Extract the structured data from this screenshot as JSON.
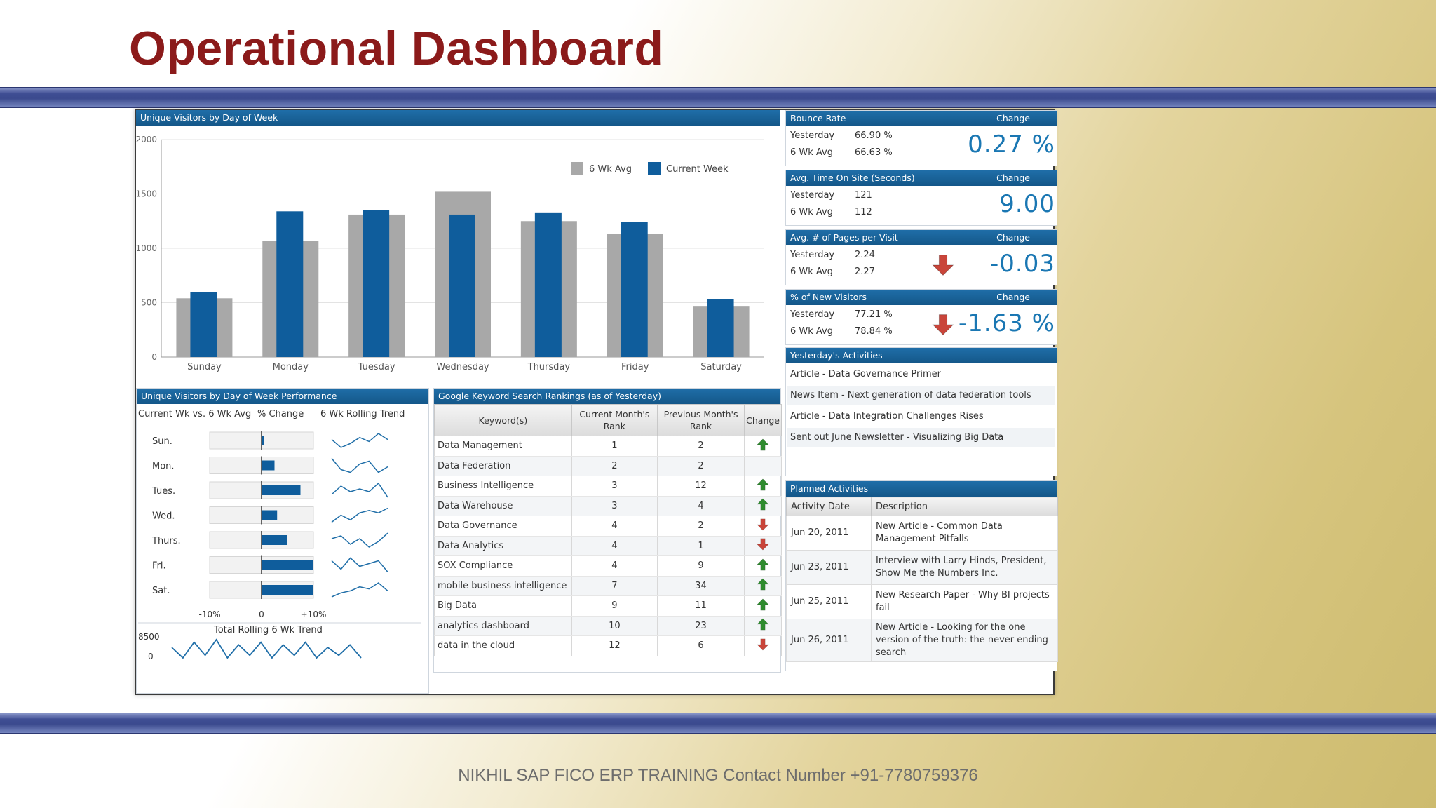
{
  "slide": {
    "title": "Operational Dashboard",
    "footer": "NIKHIL SAP FICO ERP TRAINING Contact Number +91-7780759376"
  },
  "colors": {
    "title_red": "#8b1a1a",
    "panel_header": "#145789",
    "current_week": "#0f5d9c",
    "six_wk_avg": "#a8a8a8",
    "up_arrow": "#2e8b2e",
    "down_arrow": "#c9453a",
    "kpi_value": "#1a77b3"
  },
  "visitors_chart": {
    "title": "Unique Visitors by Day of Week",
    "legend": [
      "6 Wk Avg",
      "Current Week"
    ],
    "ytick_labels": [
      "2000",
      "1500",
      "1000",
      "500",
      "0"
    ],
    "chart_data": {
      "type": "bar",
      "categories": [
        "Sunday",
        "Monday",
        "Tuesday",
        "Wednesday",
        "Thursday",
        "Friday",
        "Saturday"
      ],
      "series": [
        {
          "name": "6 Wk Avg",
          "values": [
            540,
            1070,
            1310,
            1520,
            1250,
            1130,
            470
          ]
        },
        {
          "name": "Current Week",
          "values": [
            600,
            1340,
            1350,
            1310,
            1330,
            1240,
            530
          ]
        }
      ],
      "ylim": [
        0,
        2000
      ],
      "yticks": [
        0,
        500,
        1000,
        1500,
        2000
      ],
      "grid": true,
      "legend_position": "top-right"
    }
  },
  "performance": {
    "title": "Unique Visitors by Day of Week Performance",
    "col1": "Current Wk vs. 6 Wk Avg",
    "col2": "% Change",
    "col3": "6 Wk Rolling Trend",
    "rows": [
      {
        "day": "Sun.",
        "pct": 0.5,
        "trend": [
          6,
          2,
          4,
          7,
          5,
          9,
          6
        ]
      },
      {
        "day": "Mon.",
        "pct": 2.5,
        "trend": [
          8,
          4,
          3,
          6,
          7,
          3,
          5
        ]
      },
      {
        "day": "Tues.",
        "pct": 7.5,
        "trend": [
          3,
          6,
          4,
          5,
          4,
          7,
          2
        ]
      },
      {
        "day": "Wed.",
        "pct": 3,
        "trend": [
          2,
          5,
          3,
          6,
          7,
          6,
          8
        ]
      },
      {
        "day": "Thurs.",
        "pct": 5,
        "trend": [
          6,
          7,
          4,
          6,
          3,
          5,
          8
        ]
      },
      {
        "day": "Fri.",
        "pct": 10,
        "trend": [
          7,
          4,
          8,
          5,
          6,
          7,
          3
        ]
      },
      {
        "day": "Sat.",
        "pct": 10,
        "trend": [
          2,
          4,
          5,
          7,
          6,
          9,
          5
        ]
      }
    ],
    "axis_min": "-10%",
    "axis_zero": "0",
    "axis_max": "+10%",
    "total_trend_label": "Total Rolling 6 Wk Trend",
    "total_ymax": "8500",
    "total_ymin": "0",
    "total_trend": [
      6,
      2,
      8,
      3,
      9,
      2,
      7,
      3,
      8,
      2,
      7,
      3,
      8,
      2,
      6,
      3,
      7,
      2
    ]
  },
  "keywords": {
    "title": "Google Keyword Search Rankings (as of Yesterday)",
    "headers": {
      "keyword": "Keyword(s)",
      "current_line1": "Current Month's",
      "current_line2": "Rank",
      "previous_line1": "Previous Month's",
      "previous_line2": "Rank",
      "change": "Change"
    },
    "rows": [
      {
        "keyword": "Data Management",
        "current": "1",
        "previous": "2",
        "change": "up"
      },
      {
        "keyword": "Data Federation",
        "current": "2",
        "previous": "2",
        "change": "none"
      },
      {
        "keyword": "Business Intelligence",
        "current": "3",
        "previous": "12",
        "change": "up"
      },
      {
        "keyword": "Data Warehouse",
        "current": "3",
        "previous": "4",
        "change": "up"
      },
      {
        "keyword": "Data Governance",
        "current": "4",
        "previous": "2",
        "change": "down"
      },
      {
        "keyword": "Data Analytics",
        "current": "4",
        "previous": "1",
        "change": "down"
      },
      {
        "keyword": "SOX Compliance",
        "current": "4",
        "previous": "9",
        "change": "up"
      },
      {
        "keyword": "mobile business intelligence",
        "current": "7",
        "previous": "34",
        "change": "up"
      },
      {
        "keyword": "Big Data",
        "current": "9",
        "previous": "11",
        "change": "up"
      },
      {
        "keyword": "analytics dashboard",
        "current": "10",
        "previous": "23",
        "change": "up"
      },
      {
        "keyword": "data in the cloud",
        "current": "12",
        "previous": "6",
        "change": "down"
      }
    ]
  },
  "kpis": [
    {
      "title": "Bounce Rate",
      "change_label": "Change",
      "y_label": "Yesterday",
      "y_value": "66.90 %",
      "a_label": "6 Wk Avg",
      "a_value": "66.63 %",
      "big": "0.27 %",
      "arrow": "none"
    },
    {
      "title": "Avg. Time On Site (Seconds)",
      "change_label": "Change",
      "y_label": "Yesterday",
      "y_value": "121",
      "a_label": "6 Wk Avg",
      "a_value": "112",
      "big": "9.00",
      "arrow": "none"
    },
    {
      "title": "Avg. # of Pages per Visit",
      "change_label": "Change",
      "y_label": "Yesterday",
      "y_value": "2.24",
      "a_label": "6 Wk Avg",
      "a_value": "2.27",
      "big": "-0.03",
      "arrow": "down"
    },
    {
      "title": "% of New Visitors",
      "change_label": "Change",
      "y_label": "Yesterday",
      "y_value": "77.21 %",
      "a_label": "6 Wk Avg",
      "a_value": "78.84 %",
      "big": "-1.63 %",
      "arrow": "down"
    }
  ],
  "yesterday": {
    "title": "Yesterday's Activities",
    "items": [
      "Article - Data Governance Primer",
      "News Item - Next generation of data federation tools",
      "Article - Data Integration Challenges Rises",
      "Sent out June Newsletter - Visualizing Big Data"
    ]
  },
  "planned": {
    "title": "Planned Activities",
    "col_date": "Activity Date",
    "col_desc": "Description",
    "rows": [
      {
        "date": "Jun 20, 2011",
        "desc": "New Article - Common Data Management Pitfalls"
      },
      {
        "date": "Jun 23, 2011",
        "desc": "Interview with Larry Hinds, President, Show Me the Numbers Inc."
      },
      {
        "date": "Jun 25, 2011",
        "desc": "New Research Paper - Why BI projects fail"
      },
      {
        "date": "Jun 26, 2011",
        "desc": "New Article - Looking for the one version of the truth: the never ending search"
      }
    ]
  }
}
